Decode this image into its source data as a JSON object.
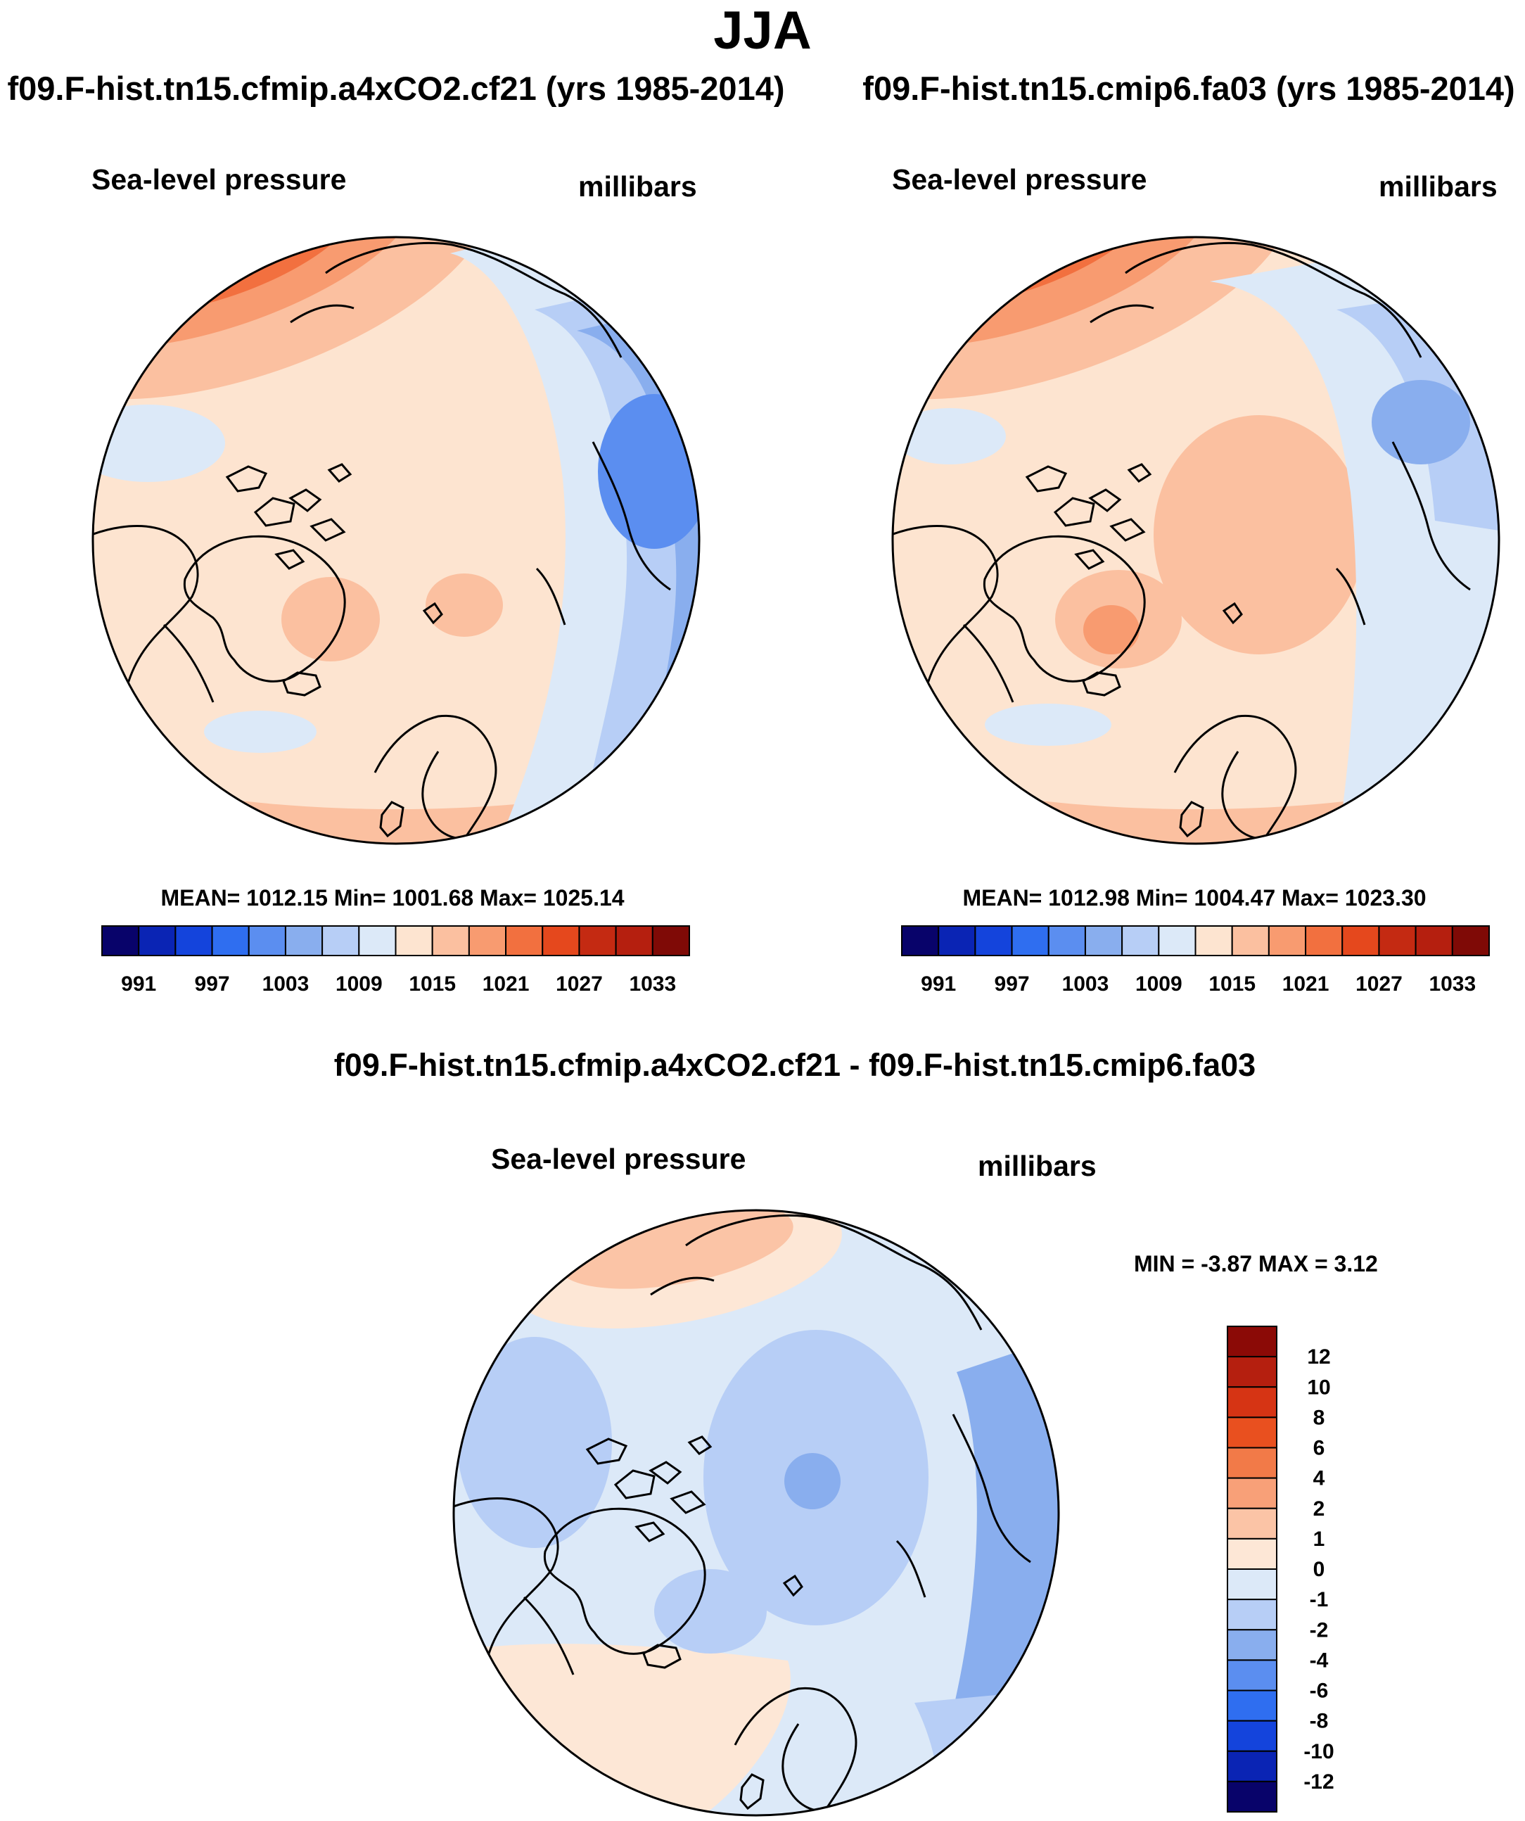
{
  "title": "JJA",
  "panels": [
    {
      "run_title": "f09.F-hist.tn15.cfmip.a4xCO2.cf21 (yrs 1985-2014)",
      "variable": "Sea-level pressure",
      "units": "millibars",
      "stats_text": "MEAN= 1012.15  Min= 1001.68  Max= 1025.14"
    },
    {
      "run_title": "f09.F-hist.tn15.cmip6.fa03 (yrs 1985-2014)",
      "variable": "Sea-level pressure",
      "units": "millibars",
      "stats_text": "MEAN= 1012.98  Min= 1004.47  Max= 1023.30"
    }
  ],
  "difference": {
    "title": "f09.F-hist.tn15.cfmip.a4xCO2.cf21 - f09.F-hist.tn15.cmip6.fa03",
    "variable": "Sea-level pressure",
    "units": "millibars",
    "minmax_text": "MIN =  -3.87 MAX =   3.12"
  },
  "chart_data": [
    {
      "type": "heatmap",
      "projection": "north polar stereographic",
      "title": "f09.F-hist.tn15.cfmip.a4xCO2.cf21 (yrs 1985-2014)",
      "variable": "Sea-level pressure",
      "units": "millibars",
      "mean": 1012.15,
      "min": 1001.68,
      "max": 1025.14,
      "colorbar_levels": [
        991,
        994,
        997,
        1000,
        1003,
        1006,
        1009,
        1012,
        1015,
        1018,
        1021,
        1024,
        1027,
        1030,
        1033
      ],
      "colorbar_tick_labels": [
        "991",
        "997",
        "1003",
        "1009",
        "1015",
        "1021",
        "1027",
        "1033"
      ],
      "colorbar_colors": [
        "#08036a",
        "#0a24b4",
        "#1444dc",
        "#2f6ef0",
        "#5b8ef0",
        "#89aeee",
        "#b7cef6",
        "#dce9f8",
        "#fde4d0",
        "#fbc0a0",
        "#f89b70",
        "#f2703f",
        "#e5481d",
        "#c42a12",
        "#b51f0f",
        "#7f0a06"
      ]
    },
    {
      "type": "heatmap",
      "projection": "north polar stereographic",
      "title": "f09.F-hist.tn15.cmip6.fa03 (yrs 1985-2014)",
      "variable": "Sea-level pressure",
      "units": "millibars",
      "mean": 1012.98,
      "min": 1004.47,
      "max": 1023.3,
      "colorbar_levels": [
        991,
        994,
        997,
        1000,
        1003,
        1006,
        1009,
        1012,
        1015,
        1018,
        1021,
        1024,
        1027,
        1030,
        1033
      ],
      "colorbar_tick_labels": [
        "991",
        "997",
        "1003",
        "1009",
        "1015",
        "1021",
        "1027",
        "1033"
      ],
      "colorbar_colors": [
        "#08036a",
        "#0a24b4",
        "#1444dc",
        "#2f6ef0",
        "#5b8ef0",
        "#89aeee",
        "#b7cef6",
        "#dce9f8",
        "#fde4d0",
        "#fbc0a0",
        "#f89b70",
        "#f2703f",
        "#e5481d",
        "#c42a12",
        "#b51f0f",
        "#7f0a06"
      ]
    },
    {
      "type": "heatmap",
      "projection": "north polar stereographic",
      "title": "f09.F-hist.tn15.cfmip.a4xCO2.cf21 - f09.F-hist.tn15.cmip6.fa03",
      "variable": "Sea-level pressure",
      "units": "millibars",
      "min": -3.87,
      "max": 3.12,
      "colorbar_levels": [
        -12,
        -10,
        -8,
        -6,
        -4,
        -2,
        -1,
        0,
        1,
        2,
        4,
        6,
        8,
        10,
        12
      ],
      "colorbar_tick_labels": [
        "12",
        "10",
        "8",
        "6",
        "4",
        "2",
        "1",
        "0",
        "-1",
        "-2",
        "-4",
        "-6",
        "-8",
        "-10",
        "-12"
      ],
      "colorbar_colors_top_to_bottom": [
        "#8b0a06",
        "#b51f0f",
        "#d63414",
        "#e9501f",
        "#f27a48",
        "#f8a078",
        "#fbc4a6",
        "#fde7d6",
        "#dce9f8",
        "#b7cef6",
        "#89aeee",
        "#5b8ef0",
        "#2f6ef0",
        "#1444dc",
        "#0a24b4",
        "#08036a"
      ]
    }
  ]
}
